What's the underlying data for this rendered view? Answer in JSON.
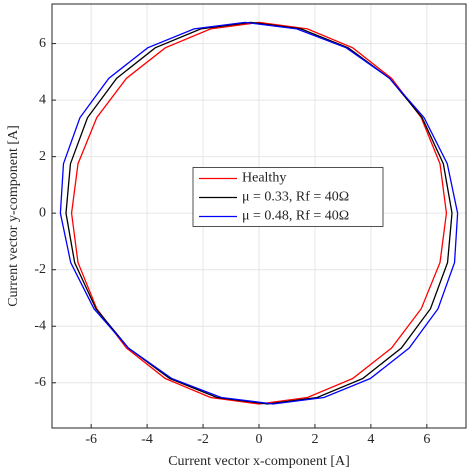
{
  "chart_data": {
    "type": "line",
    "xlabel": "Current vector x-component [A]",
    "ylabel": "Current vector y-component [A]",
    "xlim": [
      -7.4,
      7.4
    ],
    "ylim": [
      -7.6,
      7.4
    ],
    "xticks": [
      -6,
      -4,
      -2,
      0,
      2,
      4,
      6
    ],
    "yticks": [
      -6,
      -4,
      -2,
      0,
      2,
      4,
      6
    ],
    "grid": true,
    "legend": "center",
    "series": [
      {
        "name": "Healthy",
        "color": "#ff0000",
        "x": [
          6.7,
          6.47,
          5.8,
          4.74,
          3.35,
          1.73,
          0,
          -1.73,
          -3.35,
          -4.74,
          -5.8,
          -6.47,
          -6.7,
          -6.47,
          -5.8,
          -4.74,
          -3.35,
          -1.73,
          0,
          1.73,
          3.35,
          4.74,
          5.8,
          6.47,
          6.7
        ],
        "values": [
          0,
          1.75,
          3.38,
          4.77,
          5.85,
          6.52,
          6.75,
          6.52,
          5.85,
          4.77,
          3.38,
          1.75,
          0,
          -1.75,
          -3.38,
          -4.77,
          -5.85,
          -6.52,
          -6.75,
          -6.52,
          -5.85,
          -4.77,
          -3.38,
          -1.75,
          0
        ]
      },
      {
        "name": "μ = 0.33, Rf = 40Ω",
        "color": "#000000",
        "x": [
          6.9,
          6.59,
          5.83,
          4.67,
          3.19,
          1.5,
          -0.3,
          -2.08,
          -3.71,
          -5.09,
          -6.13,
          -6.74,
          -6.9,
          -6.59,
          -5.83,
          -4.67,
          -3.19,
          -1.5,
          0.3,
          2.08,
          3.71,
          5.09,
          6.13,
          6.74,
          6.9
        ],
        "values": [
          0,
          1.75,
          3.38,
          4.77,
          5.85,
          6.52,
          6.75,
          6.52,
          5.85,
          4.77,
          3.38,
          1.75,
          0,
          -1.75,
          -3.38,
          -4.77,
          -5.85,
          -6.52,
          -6.75,
          -6.52,
          -5.85,
          -4.77,
          -3.38,
          -1.75,
          0
        ]
      },
      {
        "name": "μ = 0.48, Rf = 40Ω",
        "color": "#0000ff",
        "x": [
          7.1,
          6.73,
          5.9,
          4.67,
          3.12,
          1.35,
          -0.5,
          -2.32,
          -3.98,
          -5.37,
          -6.4,
          -6.99,
          -7.1,
          -6.73,
          -5.9,
          -4.67,
          -3.12,
          -1.35,
          0.5,
          2.32,
          3.98,
          5.37,
          6.4,
          6.99,
          7.1
        ],
        "values": [
          0,
          1.75,
          3.38,
          4.77,
          5.85,
          6.52,
          6.75,
          6.52,
          5.85,
          4.77,
          3.38,
          1.75,
          0,
          -1.75,
          -3.38,
          -4.77,
          -5.85,
          -6.52,
          -6.75,
          -6.52,
          -5.85,
          -4.77,
          -3.38,
          -1.75,
          0
        ]
      }
    ]
  }
}
